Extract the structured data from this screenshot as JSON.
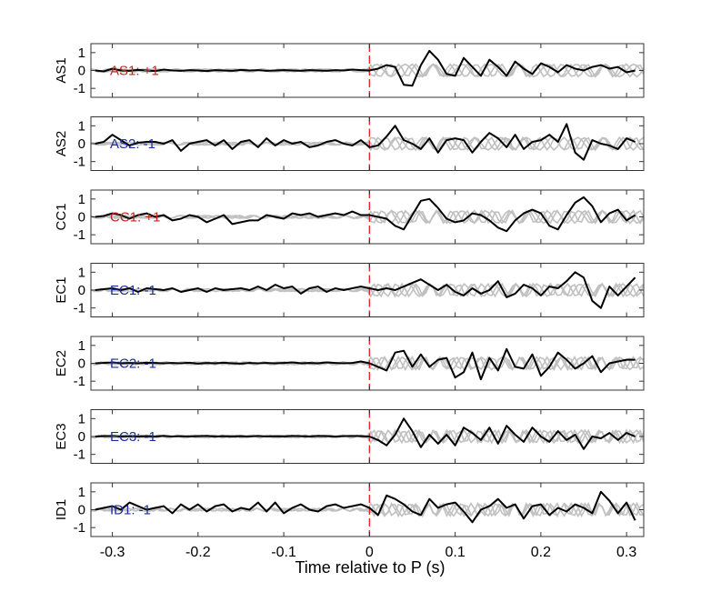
{
  "figure": {
    "xlabel": "Time relative to P (s)",
    "x_ticks": [
      -0.3,
      -0.2,
      -0.1,
      0,
      0.1,
      0.2,
      0.3
    ],
    "x_tick_labels": [
      "-0.3",
      "-0.2",
      "-0.1",
      "0",
      "0.1",
      "0.2",
      "0.3"
    ],
    "y_ticks": [
      1,
      0,
      -1
    ],
    "y_tick_labels": [
      "1",
      "0",
      "-1"
    ]
  },
  "colors": {
    "main_trace": "#000000",
    "reference_traces": "#c0c0c0",
    "p_marker": "#e8262a",
    "positive_label": "#c0281e",
    "negative_label": "#1c2e9e"
  },
  "chart_data": {
    "type": "line",
    "xlim": [
      -0.325,
      0.32
    ],
    "ylim": [
      -1.5,
      1.5
    ],
    "vertical_marker_x": 0,
    "grid": false,
    "x": [
      -0.32,
      -0.31,
      -0.3,
      -0.29,
      -0.28,
      -0.27,
      -0.26,
      -0.25,
      -0.24,
      -0.23,
      -0.22,
      -0.21,
      -0.2,
      -0.19,
      -0.18,
      -0.17,
      -0.16,
      -0.15,
      -0.14,
      -0.13,
      -0.12,
      -0.11,
      -0.1,
      -0.09,
      -0.08,
      -0.07,
      -0.06,
      -0.05,
      -0.04,
      -0.03,
      -0.02,
      -0.01,
      0,
      0.01,
      0.02,
      0.03,
      0.04,
      0.05,
      0.06,
      0.07,
      0.08,
      0.09,
      0.1,
      0.11,
      0.12,
      0.13,
      0.14,
      0.15,
      0.16,
      0.17,
      0.18,
      0.19,
      0.2,
      0.21,
      0.22,
      0.23,
      0.24,
      0.25,
      0.26,
      0.27,
      0.28,
      0.29,
      0.3,
      0.31
    ],
    "panels": [
      {
        "ylabel": "AS1",
        "label": "AS1: +1",
        "polarity": "positive",
        "values": [
          0,
          -0.05,
          0.1,
          0,
          -0.02,
          0.03,
          0,
          -0.03,
          0.05,
          0,
          -0.02,
          0.02,
          0,
          -0.03,
          0.02,
          0,
          -0.02,
          0.03,
          0,
          0.02,
          -0.02,
          0,
          0.02,
          0,
          -0.02,
          0.02,
          0,
          -0.02,
          0.02,
          0,
          0.05,
          0.02,
          0,
          0.1,
          0.3,
          0.2,
          -0.8,
          -0.85,
          0.3,
          1.1,
          0.6,
          -0.2,
          -0.3,
          0.7,
          0.2,
          -0.3,
          0.6,
          0.2,
          -0.3,
          0.5,
          0.1,
          -0.2,
          0.4,
          0.2,
          -0.1,
          0.3,
          0.1,
          0,
          0.2,
          0.3,
          0.1,
          0.2,
          -0.1,
          0
        ]
      },
      {
        "ylabel": "AS2",
        "label": "AS2: -1",
        "polarity": "negative",
        "values": [
          0,
          0.1,
          0.5,
          0.2,
          -0.1,
          0.05,
          0.1,
          0.1,
          0,
          0.2,
          -0.4,
          0,
          0.1,
          0.2,
          -0.1,
          0.2,
          -0.3,
          0.1,
          0.2,
          -0.2,
          0.3,
          -0.1,
          0.2,
          0,
          0.1,
          -0.2,
          -0.1,
          0.1,
          0.2,
          0,
          -0.1,
          0.2,
          -0.2,
          -0.1,
          0.4,
          1,
          0.2,
          0,
          -0.3,
          0.3,
          -0.5,
          0.2,
          0.3,
          0.2,
          -0.5,
          0.1,
          0.6,
          0.3,
          -0.2,
          0.5,
          -0.3,
          0.1,
          0.2,
          0.5,
          0.1,
          1.1,
          -0.5,
          -0.9,
          0.2,
          0,
          -0.1,
          -0.3,
          0.3,
          0.1
        ]
      },
      {
        "ylabel": "CC1",
        "label": "CC1: +1",
        "polarity": "positive",
        "values": [
          0,
          0.05,
          0.2,
          0.1,
          -0.1,
          0.1,
          0.2,
          0,
          0.1,
          -0.2,
          -0.1,
          0.1,
          0,
          -0.3,
          -0.1,
          0.1,
          -0.4,
          -0.3,
          -0.2,
          -0.2,
          0.1,
          0,
          -0.1,
          0.2,
          0.1,
          0.2,
          0,
          0.1,
          0.2,
          0.1,
          0.3,
          0.1,
          0.1,
          0,
          -0.1,
          -0.5,
          -0.7,
          0.1,
          0.9,
          1,
          0.5,
          -0.1,
          -0.3,
          -0.2,
          0.2,
          0.1,
          -0.2,
          -0.6,
          -0.8,
          -0.2,
          0.2,
          0.4,
          0.2,
          -0.5,
          -0.7,
          0.1,
          0.8,
          1.1,
          0.6,
          -0.3,
          0.2,
          0.4,
          -0.2,
          0.1
        ]
      },
      {
        "ylabel": "EC1",
        "label": "EC1: -1",
        "polarity": "negative",
        "values": [
          0,
          0.05,
          0.1,
          0,
          0.1,
          -0.1,
          0.1,
          0.05,
          0,
          0.1,
          -0.1,
          0,
          0.1,
          -0.1,
          0.1,
          0,
          0.05,
          0.1,
          0,
          0.2,
          0,
          0.3,
          0.1,
          0.2,
          -0.2,
          0.1,
          0.2,
          -0.1,
          0.1,
          0,
          0.1,
          0.2,
          0.1,
          0,
          0.1,
          0,
          0.2,
          0.4,
          0.6,
          0.3,
          0,
          0.3,
          -0.1,
          -0.3,
          0.1,
          -0.2,
          0,
          0.5,
          -0.4,
          -0.2,
          0.3,
          0.1,
          -0.3,
          0.2,
          0.1,
          0.5,
          1,
          0.7,
          -0.6,
          -1,
          0.2,
          -0.3,
          0.2,
          0.7
        ]
      },
      {
        "ylabel": "EC2",
        "label": "EC2: -1",
        "polarity": "negative",
        "values": [
          0,
          0.02,
          0.05,
          0,
          0.02,
          0,
          0.03,
          0.02,
          0,
          0.02,
          0,
          0.03,
          -0.02,
          0.02,
          0,
          0.03,
          0,
          -0.02,
          0.02,
          0,
          0.02,
          0,
          0.02,
          0.05,
          0,
          0.02,
          0,
          0.05,
          0.02,
          0,
          0.02,
          0.1,
          0,
          -0.2,
          -0.4,
          0.6,
          0.7,
          -0.2,
          0.5,
          -0.2,
          0.2,
          0.3,
          -0.8,
          -0.5,
          0.6,
          -0.9,
          0.3,
          -0.4,
          0.8,
          -0.2,
          -0.3,
          0.5,
          -0.7,
          -0.2,
          0.6,
          0.2,
          -0.3,
          0,
          0.4,
          -0.5,
          0,
          0.1,
          0.2,
          0.2
        ]
      },
      {
        "ylabel": "EC3",
        "label": "EC3: -1",
        "polarity": "negative",
        "values": [
          0,
          0.02,
          0.03,
          0,
          0.02,
          0,
          0.02,
          0,
          0.03,
          0,
          0.02,
          0,
          0.02,
          0.03,
          0,
          0.02,
          0,
          0.02,
          0,
          0.03,
          0,
          0.02,
          0,
          0.03,
          0.02,
          0,
          0.03,
          0.02,
          0,
          0.02,
          0.03,
          0.02,
          0,
          -0.2,
          -0.5,
          0.1,
          1,
          0.3,
          -0.6,
          0.1,
          -0.4,
          0.1,
          -0.5,
          0.5,
          0.2,
          -0.2,
          0.5,
          -0.4,
          0.6,
          0.1,
          -0.3,
          0.5,
          0,
          -0.3,
          0.3,
          -0.2,
          0.1,
          -0.7,
          0,
          -0.1,
          0.2,
          -0.2,
          0.2,
          0
        ]
      },
      {
        "ylabel": "ID1",
        "label": "ID1: -1",
        "polarity": "negative",
        "values": [
          0,
          0.1,
          0.2,
          0,
          0.4,
          0.2,
          0,
          0.1,
          0.2,
          -0.2,
          0.3,
          0,
          0.3,
          -0.1,
          0.2,
          0.3,
          -0.1,
          0.1,
          0,
          0.4,
          -0.1,
          0.4,
          -0.2,
          0.1,
          0.3,
          0,
          -0.1,
          0.2,
          0.3,
          0.1,
          0.2,
          0.3,
          0.1,
          -0.3,
          0.8,
          0.6,
          0.3,
          -0.1,
          -0.3,
          0.6,
          0.1,
          0.3,
          0.4,
          -0.1,
          -0.7,
          0,
          0.2,
          0.6,
          0.1,
          0.3,
          -0.5,
          0.2,
          0.3,
          -0.3,
          0.1,
          -0.1,
          0.3,
          0.1,
          -0.2,
          1,
          0.5,
          -0.2,
          0.4,
          -0.6
        ]
      }
    ]
  }
}
